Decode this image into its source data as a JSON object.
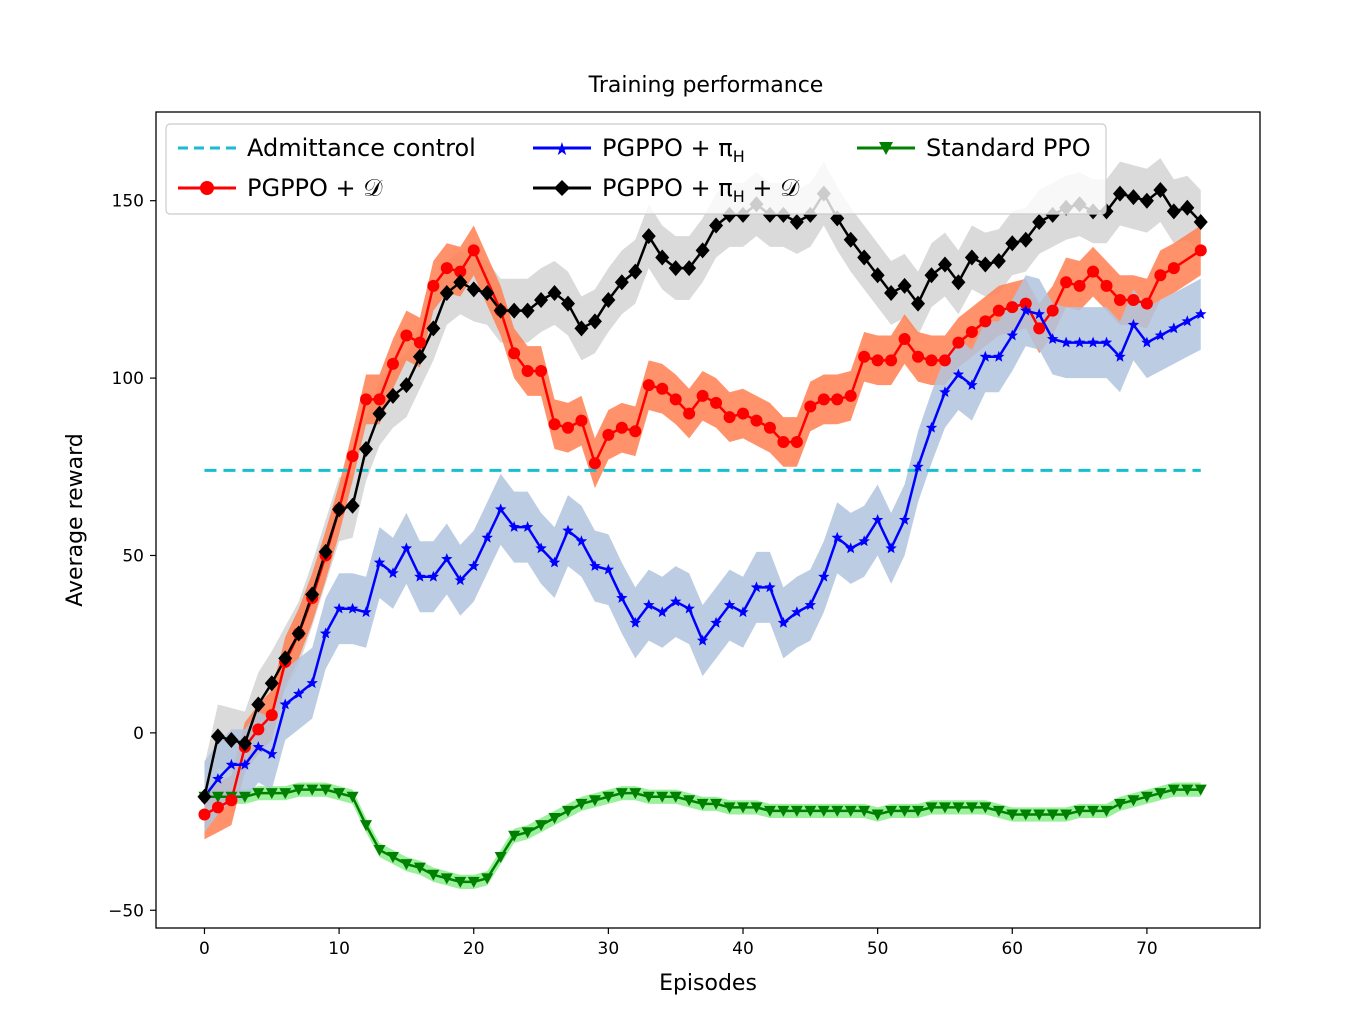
{
  "chart_data": {
    "type": "line",
    "title": "Training performance",
    "xlabel": "Episodes",
    "ylabel": "Average reward",
    "xlim": [
      -3.6,
      78.4
    ],
    "ylim": [
      -55,
      175
    ],
    "xticks": [
      0,
      10,
      20,
      30,
      40,
      50,
      60,
      70
    ],
    "yticks": [
      -50,
      0,
      50,
      100,
      150
    ],
    "legend_position": "top",
    "series": [
      {
        "name": "Admittance control",
        "legend_label": "Admittance control",
        "style": "dashed",
        "color": "#17becf",
        "x": [
          0,
          74
        ],
        "y": [
          74,
          74
        ]
      },
      {
        "name": "PGPPO + D",
        "legend_label": "PGPPO + 𝒟",
        "marker": "circle",
        "color": "#ff0000",
        "band_color": "#ff7f50",
        "y": [
          -23,
          -21,
          -19,
          -4,
          1,
          5,
          20,
          28,
          38,
          50,
          63,
          78,
          94,
          94,
          104,
          112,
          110,
          126,
          131,
          130,
          136,
          119,
          107,
          102,
          102,
          87,
          86,
          88,
          76,
          84,
          86,
          85,
          98,
          97,
          94,
          90,
          95,
          93,
          89,
          90,
          88,
          86,
          82,
          82,
          92,
          94,
          94,
          95,
          106,
          105,
          105,
          111,
          106,
          105,
          105,
          110,
          113,
          116,
          119,
          120,
          121,
          114,
          119,
          127,
          126,
          130,
          126,
          122,
          122,
          121,
          129,
          131,
          136
        ],
        "x": [
          0,
          1,
          2,
          3,
          4,
          5,
          6,
          7,
          8,
          9,
          10,
          11,
          12,
          13,
          14,
          15,
          16,
          17,
          18,
          19,
          20,
          22,
          23,
          24,
          25,
          26,
          27,
          28,
          29,
          30,
          31,
          32,
          33,
          34,
          35,
          36,
          37,
          38,
          39,
          40,
          41,
          42,
          43,
          44,
          45,
          46,
          47,
          48,
          49,
          50,
          51,
          52,
          53,
          54,
          55,
          56,
          57,
          58,
          59,
          60,
          61,
          62,
          63,
          64,
          65,
          66,
          67,
          68,
          69,
          70,
          71,
          72,
          74
        ],
        "band": 7
      },
      {
        "name": "PGPPO + πH",
        "legend_label": "PGPPO + π",
        "legend_subscript": "H",
        "marker": "star",
        "color": "#0000ff",
        "band_color": "#b0c4de",
        "x": [
          0,
          1,
          2,
          3,
          4,
          5,
          6,
          7,
          8,
          9,
          10,
          11,
          12,
          13,
          14,
          15,
          16,
          17,
          18,
          19,
          20,
          21,
          22,
          23,
          24,
          25,
          26,
          27,
          28,
          29,
          30,
          31,
          32,
          33,
          34,
          35,
          36,
          37,
          38,
          39,
          40,
          41,
          42,
          43,
          44,
          45,
          46,
          47,
          48,
          49,
          50,
          51,
          52,
          53,
          54,
          55,
          56,
          57,
          58,
          59,
          60,
          61,
          62,
          63,
          64,
          65,
          66,
          67,
          68,
          69,
          70,
          71,
          72,
          73,
          74
        ],
        "y": [
          -18,
          -13,
          -9,
          -9,
          -4,
          -6,
          8,
          11,
          14,
          28,
          35,
          35,
          34,
          48,
          45,
          52,
          44,
          44,
          49,
          43,
          47,
          55,
          63,
          58,
          58,
          52,
          48,
          57,
          54,
          47,
          46,
          38,
          31,
          36,
          34,
          37,
          35,
          26,
          31,
          36,
          34,
          41,
          41,
          31,
          34,
          36,
          44,
          55,
          52,
          54,
          60,
          52,
          60,
          75,
          86,
          96,
          101,
          98,
          106,
          106,
          112,
          119,
          118,
          111,
          110,
          110,
          110,
          110,
          106,
          115,
          110,
          112,
          114,
          116,
          118
        ],
        "band": 10
      },
      {
        "name": "PGPPO + πH + D",
        "legend_label": "PGPPO + π",
        "legend_subscript": "H",
        "legend_suffix": " + 𝒟",
        "marker": "diamond",
        "color": "#000000",
        "band_color": "#d3d3d3",
        "x": [
          0,
          1,
          2,
          3,
          4,
          5,
          6,
          7,
          8,
          9,
          10,
          11,
          12,
          13,
          14,
          15,
          16,
          17,
          18,
          19,
          20,
          21,
          22,
          23,
          24,
          25,
          26,
          27,
          28,
          29,
          30,
          31,
          32,
          33,
          34,
          35,
          36,
          37,
          38,
          39,
          40,
          41,
          42,
          43,
          44,
          45,
          46,
          47,
          48,
          49,
          50,
          51,
          52,
          53,
          54,
          55,
          56,
          57,
          58,
          59,
          60,
          61,
          62,
          63,
          64,
          65,
          66,
          67,
          68,
          69,
          70,
          71,
          72,
          73,
          74
        ],
        "y": [
          -18,
          -1,
          -2,
          -3,
          8,
          14,
          21,
          28,
          39,
          51,
          63,
          64,
          80,
          90,
          95,
          98,
          106,
          114,
          124,
          127,
          125,
          124,
          119,
          119,
          119,
          122,
          124,
          121,
          114,
          116,
          122,
          127,
          130,
          140,
          134,
          131,
          131,
          136,
          143,
          146,
          146,
          149,
          146,
          146,
          144,
          146,
          152,
          145,
          139,
          134,
          129,
          124,
          126,
          121,
          129,
          132,
          127,
          134,
          132,
          133,
          138,
          139,
          144,
          146,
          148,
          149,
          147,
          147,
          152,
          151,
          150,
          153,
          147,
          148,
          144
        ],
        "band": 9
      },
      {
        "name": "Standard PPO",
        "legend_label": "Standard PPO",
        "marker": "triangle-down",
        "color": "#008000",
        "band_color": "#90ee90",
        "x": [
          0,
          1,
          2,
          3,
          4,
          5,
          6,
          7,
          8,
          9,
          10,
          11,
          12,
          13,
          14,
          15,
          16,
          17,
          18,
          19,
          20,
          21,
          22,
          23,
          24,
          25,
          26,
          27,
          28,
          29,
          30,
          31,
          32,
          33,
          34,
          35,
          36,
          37,
          38,
          39,
          40,
          41,
          42,
          43,
          44,
          45,
          46,
          47,
          48,
          49,
          50,
          51,
          52,
          53,
          54,
          55,
          56,
          57,
          58,
          59,
          60,
          61,
          62,
          63,
          64,
          65,
          66,
          67,
          68,
          69,
          70,
          71,
          72,
          73,
          74
        ],
        "y": [
          -18,
          -18,
          -18,
          -18,
          -17,
          -17,
          -17,
          -16,
          -16,
          -16,
          -17,
          -18,
          -26,
          -33,
          -35,
          -37,
          -38,
          -40,
          -41,
          -42,
          -42,
          -41,
          -35,
          -29,
          -28,
          -26,
          -24,
          -22,
          -20,
          -19,
          -18,
          -17,
          -17,
          -18,
          -18,
          -18,
          -19,
          -20,
          -20,
          -21,
          -21,
          -21,
          -22,
          -22,
          -22,
          -22,
          -22,
          -22,
          -22,
          -22,
          -23,
          -22,
          -22,
          -22,
          -21,
          -21,
          -21,
          -21,
          -21,
          -22,
          -23,
          -23,
          -23,
          -23,
          -23,
          -22,
          -22,
          -22,
          -20,
          -19,
          -18,
          -17,
          -16,
          -16,
          -16
        ],
        "band": 2
      }
    ]
  }
}
